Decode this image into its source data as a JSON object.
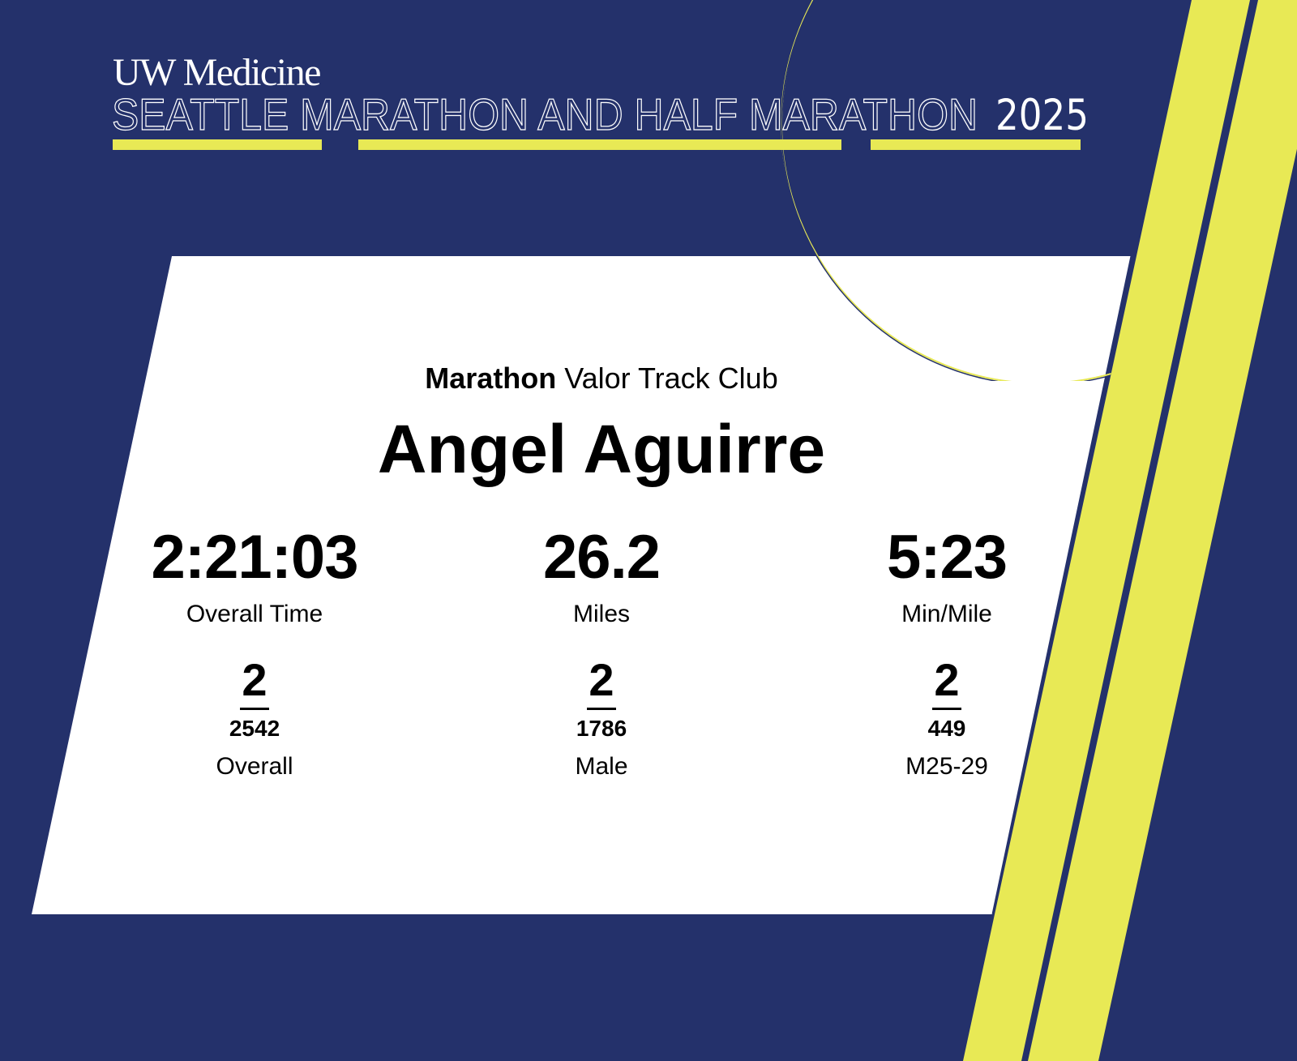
{
  "header": {
    "brand": "UW Medicine",
    "event_title": "SEATTLE MARATHON AND HALF MARATHON",
    "year": "2025"
  },
  "colors": {
    "navy": "#24316b",
    "yellow": "#e8e955",
    "card": "#ffffff"
  },
  "result": {
    "race": "Marathon",
    "club": "Valor Track Club",
    "runner_name": "Angel Aguirre",
    "stats": [
      {
        "value": "2:21:03",
        "label": "Overall Time"
      },
      {
        "value": "26.2",
        "label": "Miles"
      },
      {
        "value": "5:23",
        "label": "Min/Mile"
      }
    ],
    "placements": [
      {
        "place": "2",
        "total": "2542",
        "category": "Overall"
      },
      {
        "place": "2",
        "total": "1786",
        "category": "Male"
      },
      {
        "place": "2",
        "total": "449",
        "category": "M25-29"
      }
    ]
  }
}
